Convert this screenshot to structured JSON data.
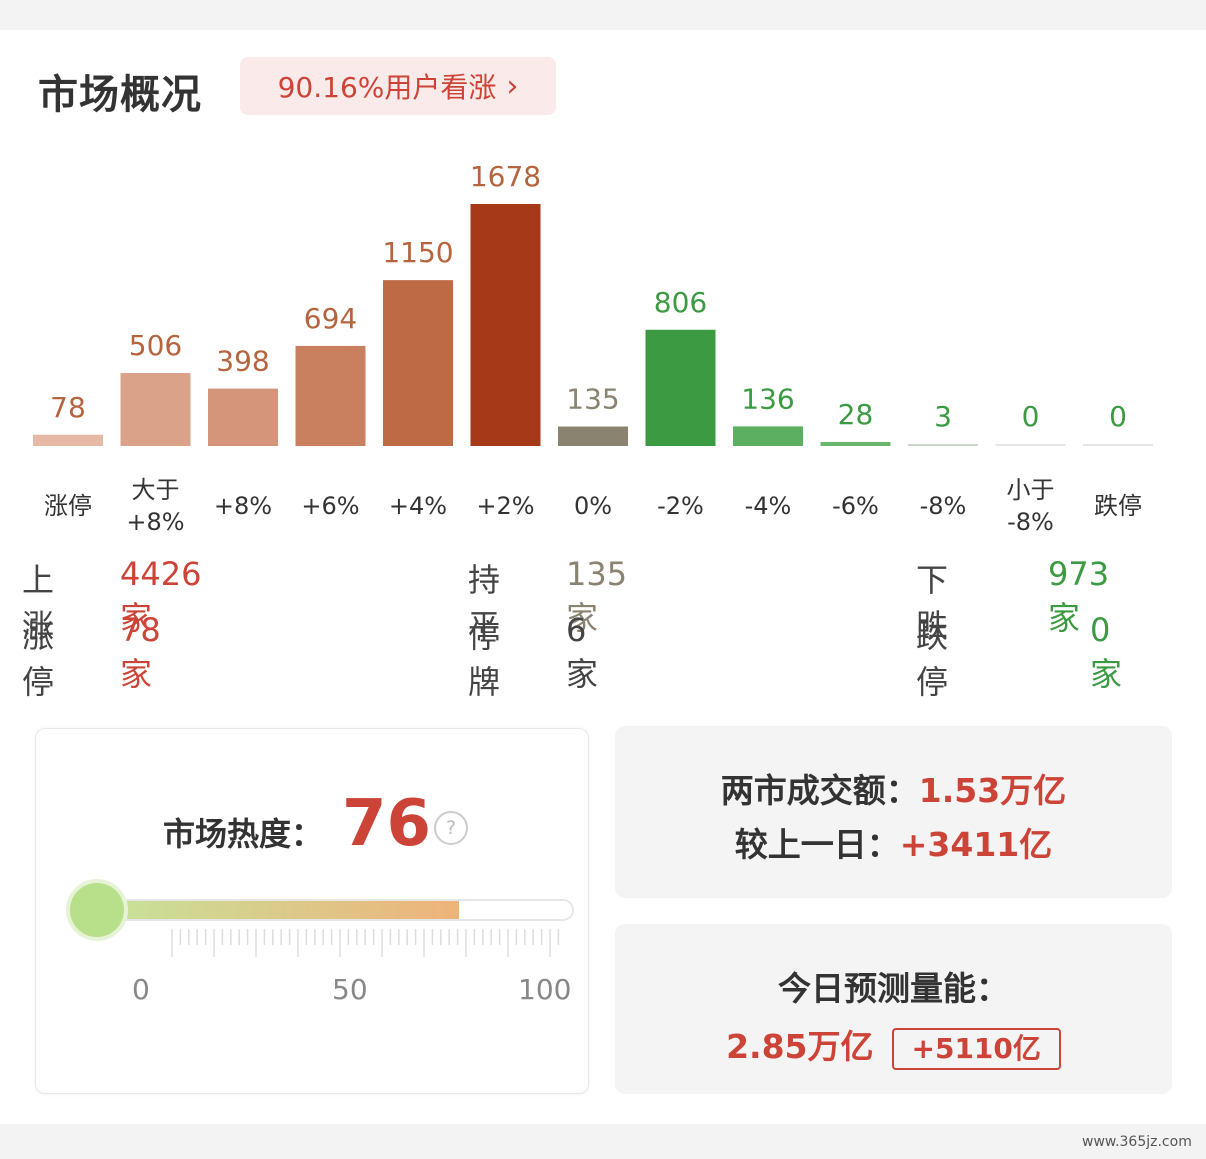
{
  "header": {
    "title": "市场概况",
    "sentiment": "90.16%用户看涨",
    "sentiment_chevron": "›"
  },
  "colors": {
    "up": "#cc4437",
    "flat": "#8a8370",
    "down": "#3c9a43"
  },
  "chart_data": {
    "type": "bar",
    "categories": [
      [
        "涨停"
      ],
      [
        "大于",
        "+8%"
      ],
      [
        "+8%"
      ],
      [
        "+6%"
      ],
      [
        "+4%"
      ],
      [
        "+2%"
      ],
      [
        "0%"
      ],
      [
        "-2%"
      ],
      [
        "-4%"
      ],
      [
        "-6%"
      ],
      [
        "-8%"
      ],
      [
        "小于",
        "-8%"
      ],
      [
        "跌停"
      ]
    ],
    "values": [
      78,
      506,
      398,
      694,
      1150,
      1678,
      135,
      806,
      136,
      28,
      3,
      0,
      0
    ],
    "bar_colors": [
      "#e6b9a6",
      "#d9a289",
      "#d4957a",
      "#c9805e",
      "#bd6a45",
      "#a63a18",
      "#8a8370",
      "#3c9a43",
      "#5cae61",
      "#6ab56e",
      "#c9d6c9",
      "#e6e6e6",
      "#e6e6e6"
    ],
    "label_colors": [
      "#b5643d",
      "#b5643d",
      "#b5643d",
      "#b5643d",
      "#b5643d",
      "#b5643d",
      "#8a8370",
      "#3c9a43",
      "#3c9a43",
      "#3c9a43",
      "#3c9a43",
      "#3c9a43",
      "#3c9a43"
    ],
    "ylim": [
      0,
      1678
    ]
  },
  "stats": {
    "rise_label": "上涨",
    "rise_value": "4426家",
    "flat_label": "持平",
    "flat_value": "135家",
    "fall_label": "下跌",
    "fall_value": "973家",
    "limit_up_label": "涨停",
    "limit_up_value": "78家",
    "suspended_label": "停牌",
    "suspended_value": "6家",
    "limit_down_label": "跌停",
    "limit_down_value": "0家"
  },
  "heat": {
    "label": "市场热度：",
    "value": "76",
    "level_percent": 76,
    "help_glyph": "?",
    "ticks": [
      "0",
      "50",
      "100"
    ]
  },
  "turnover": {
    "label": "两市成交额：",
    "value": "1.53万亿",
    "compare_label": "较上一日：",
    "compare_value": "+3411亿"
  },
  "forecast": {
    "label": "今日预测量能：",
    "value": "2.85万亿",
    "delta": "+5110亿"
  },
  "watermark": "www.365jz.com"
}
